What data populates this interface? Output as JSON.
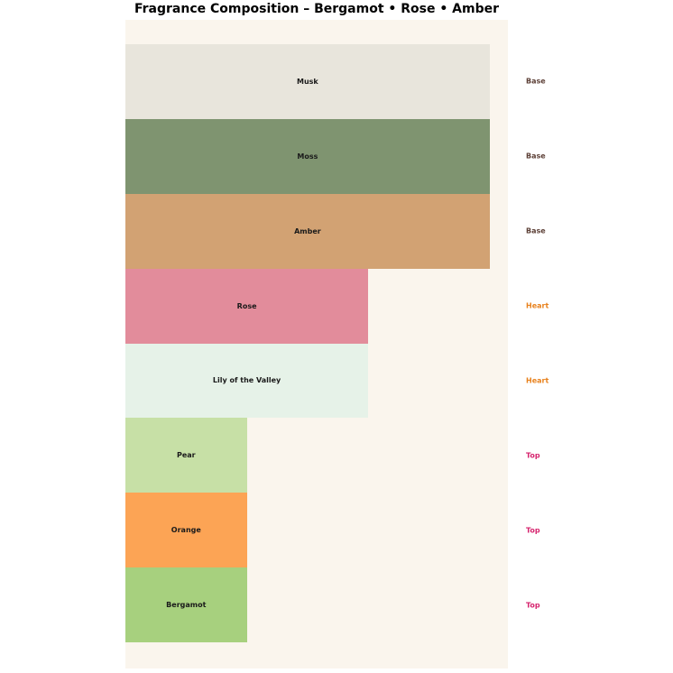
{
  "title": "Fragrance Composition – Bergamot • Rose • Amber",
  "colors": {
    "page_background": "#ffffff",
    "plot_background": "#FAF5ED",
    "bar_text": "#1a1a1a",
    "title_text": "#000000"
  },
  "chart_data": {
    "type": "bar",
    "orientation": "horizontal",
    "title": "Fragrance Composition – Bergamot • Rose • Amber",
    "xlabel": "",
    "ylabel": "",
    "axes_visible": false,
    "grid": false,
    "legend": "none",
    "xlim": [
      0,
      3.15
    ],
    "categories": [
      "Musk",
      "Moss",
      "Amber",
      "Rose",
      "Lily of the Valley",
      "Pear",
      "Orange",
      "Bergamot"
    ],
    "values": [
      3,
      3,
      3,
      2,
      2,
      1,
      1,
      1
    ],
    "tiers": [
      "Base",
      "Base",
      "Base",
      "Heart",
      "Heart",
      "Top",
      "Top",
      "Top"
    ],
    "bar_colors": [
      "#E8E5DC",
      "#7F9470",
      "#D2A273",
      "#E28C9B",
      "#E6F2E8",
      "#C7E0A6",
      "#FCA455",
      "#A7D07E"
    ],
    "tier_colors": {
      "Base": "#5D4037",
      "Heart": "#E8821E",
      "Top": "#D6246E"
    },
    "plot_background": "#FAF5ED"
  }
}
